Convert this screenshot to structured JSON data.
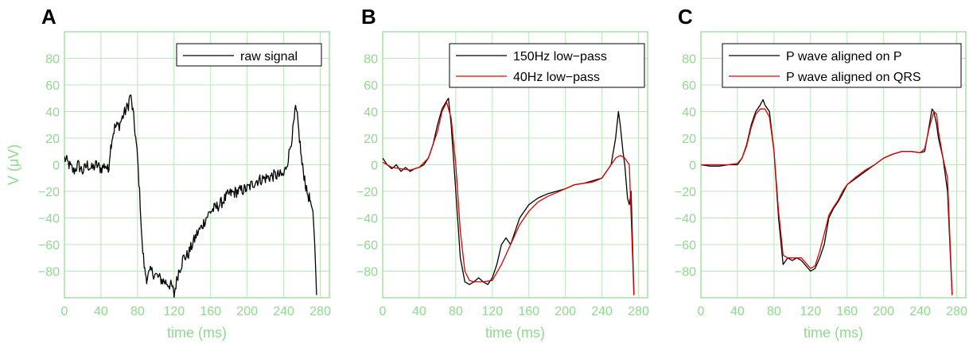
{
  "colors": {
    "grid": "#b8e8b8",
    "frame": "#8fd98f",
    "text_axis": "#8fd98f",
    "black_trace": "#000000",
    "red_trace": "#e00000"
  },
  "chart_data": [
    {
      "type": "line",
      "panel": "A",
      "xlabel": "time (ms)",
      "ylabel": "V (μV)",
      "xlim": [
        0,
        290
      ],
      "ylim": [
        -100,
        100
      ],
      "xticks": [
        0,
        40,
        80,
        120,
        160,
        200,
        240,
        280
      ],
      "yticks": [
        -80,
        -60,
        -40,
        -20,
        0,
        20,
        40,
        60,
        80
      ],
      "xtick_labels": [
        "0",
        "40",
        "80",
        "120",
        "160",
        "200",
        "240",
        "280"
      ],
      "ytick_labels": [
        "−80",
        "−60",
        "−40",
        "−20",
        "0",
        "20",
        "40",
        "60",
        "80"
      ],
      "grid": true,
      "legend_position": "top-right",
      "series": [
        {
          "name": "raw signal",
          "color": "#000000",
          "noisy": true,
          "x": [
            0,
            5,
            10,
            15,
            20,
            25,
            30,
            35,
            40,
            45,
            48,
            50,
            52,
            55,
            60,
            65,
            70,
            72,
            75,
            78,
            80,
            83,
            85,
            88,
            90,
            95,
            100,
            105,
            110,
            115,
            118,
            120,
            122,
            125,
            128,
            130,
            135,
            140,
            145,
            150,
            155,
            160,
            170,
            180,
            190,
            200,
            210,
            220,
            230,
            240,
            245,
            250,
            253,
            255,
            258,
            260,
            263,
            265,
            268,
            270,
            272,
            274,
            276
          ],
          "y": [
            5,
            0,
            -5,
            0,
            -5,
            0,
            -3,
            0,
            -3,
            0,
            -5,
            10,
            20,
            28,
            30,
            38,
            45,
            53,
            40,
            20,
            5,
            -30,
            -60,
            -80,
            -85,
            -80,
            -83,
            -86,
            -88,
            -90,
            -92,
            -98,
            -90,
            -80,
            -75,
            -70,
            -68,
            -60,
            -52,
            -47,
            -40,
            -35,
            -30,
            -22,
            -20,
            -18,
            -12,
            -10,
            -8,
            -8,
            5,
            25,
            42,
            35,
            15,
            0,
            -10,
            -20,
            -25,
            -30,
            -35,
            -60,
            -98
          ]
        }
      ]
    },
    {
      "type": "line",
      "panel": "B",
      "xlabel": "time (ms)",
      "ylabel": "",
      "xlim": [
        0,
        290
      ],
      "ylim": [
        -100,
        100
      ],
      "xticks": [
        0,
        40,
        80,
        120,
        160,
        200,
        240,
        280
      ],
      "yticks": [
        -80,
        -60,
        -40,
        -20,
        0,
        20,
        40,
        60,
        80
      ],
      "xtick_labels": [
        "0",
        "40",
        "80",
        "120",
        "160",
        "200",
        "240",
        "280"
      ],
      "ytick_labels": [
        "−80",
        "−60",
        "−40",
        "−20",
        "0",
        "20",
        "40",
        "60",
        "80"
      ],
      "grid": true,
      "legend_position": "top-right",
      "series": [
        {
          "name": "150Hz low−pass",
          "color": "#000000",
          "x": [
            0,
            5,
            10,
            15,
            20,
            25,
            30,
            35,
            40,
            45,
            50,
            55,
            60,
            65,
            70,
            72,
            75,
            80,
            85,
            90,
            95,
            100,
            105,
            110,
            115,
            120,
            125,
            130,
            135,
            140,
            145,
            150,
            160,
            170,
            180,
            190,
            200,
            210,
            220,
            230,
            240,
            245,
            250,
            255,
            258,
            260,
            263,
            265,
            268,
            270,
            272,
            275
          ],
          "y": [
            5,
            0,
            -3,
            0,
            -5,
            -2,
            -5,
            -3,
            -2,
            0,
            5,
            15,
            30,
            42,
            48,
            50,
            30,
            -20,
            -70,
            -88,
            -90,
            -88,
            -85,
            -88,
            -90,
            -85,
            -75,
            -60,
            -55,
            -60,
            -50,
            -40,
            -30,
            -25,
            -22,
            -20,
            -18,
            -15,
            -14,
            -12,
            -10,
            -5,
            0,
            20,
            40,
            30,
            10,
            0,
            -25,
            -30,
            -20,
            -98
          ]
        },
        {
          "name": "40Hz low−pass",
          "color": "#e00000",
          "x": [
            0,
            10,
            20,
            30,
            40,
            50,
            60,
            65,
            70,
            75,
            80,
            85,
            90,
            95,
            100,
            110,
            120,
            130,
            140,
            150,
            160,
            170,
            180,
            190,
            200,
            210,
            220,
            230,
            240,
            250,
            255,
            260,
            265,
            270,
            275
          ],
          "y": [
            2,
            -2,
            -3,
            -4,
            -2,
            5,
            25,
            40,
            47,
            35,
            0,
            -50,
            -80,
            -87,
            -88,
            -88,
            -87,
            -75,
            -60,
            -45,
            -35,
            -28,
            -24,
            -21,
            -18,
            -15,
            -14,
            -13,
            -10,
            0,
            5,
            7,
            5,
            0,
            -98
          ]
        }
      ]
    },
    {
      "type": "line",
      "panel": "C",
      "xlabel": "time (ms)",
      "ylabel": "",
      "xlim": [
        0,
        290
      ],
      "ylim": [
        -100,
        100
      ],
      "xticks": [
        0,
        40,
        80,
        120,
        160,
        200,
        240,
        280
      ],
      "yticks": [
        -80,
        -60,
        -40,
        -20,
        0,
        20,
        40,
        60,
        80
      ],
      "xtick_labels": [
        "0",
        "40",
        "80",
        "120",
        "160",
        "200",
        "240",
        "280"
      ],
      "ytick_labels": [
        "−80",
        "−60",
        "−40",
        "−20",
        "0",
        "20",
        "40",
        "60",
        "80"
      ],
      "grid": true,
      "legend_position": "top-right",
      "series": [
        {
          "name": "P wave aligned on P",
          "color": "#000000",
          "x": [
            0,
            10,
            20,
            30,
            40,
            45,
            50,
            55,
            60,
            65,
            68,
            70,
            75,
            80,
            85,
            90,
            95,
            100,
            105,
            110,
            115,
            120,
            125,
            130,
            135,
            140,
            145,
            150,
            155,
            160,
            170,
            180,
            190,
            200,
            210,
            220,
            230,
            240,
            245,
            250,
            253,
            255,
            258,
            260,
            265,
            270,
            275
          ],
          "y": [
            0,
            -1,
            -1,
            0,
            0,
            5,
            15,
            30,
            40,
            45,
            49,
            45,
            40,
            10,
            -40,
            -75,
            -70,
            -72,
            -70,
            -72,
            -76,
            -80,
            -78,
            -70,
            -60,
            -40,
            -33,
            -28,
            -22,
            -15,
            -10,
            -5,
            0,
            5,
            8,
            10,
            10,
            9,
            10,
            30,
            42,
            40,
            30,
            20,
            5,
            -20,
            -98
          ]
        },
        {
          "name": "P wave aligned on QRS",
          "color": "#e00000",
          "x": [
            0,
            10,
            20,
            30,
            40,
            45,
            50,
            55,
            60,
            65,
            70,
            75,
            80,
            85,
            90,
            95,
            100,
            110,
            115,
            120,
            125,
            130,
            135,
            140,
            145,
            150,
            155,
            160,
            170,
            180,
            190,
            200,
            210,
            220,
            230,
            240,
            245,
            250,
            255,
            258,
            260,
            265,
            270,
            275
          ],
          "y": [
            0,
            0,
            0,
            0,
            1,
            5,
            14,
            28,
            38,
            42,
            42,
            36,
            10,
            -35,
            -68,
            -70,
            -70,
            -70,
            -74,
            -78,
            -76,
            -65,
            -52,
            -38,
            -32,
            -27,
            -20,
            -15,
            -9,
            -4,
            0,
            5,
            8,
            10,
            10,
            9,
            12,
            28,
            40,
            38,
            25,
            5,
            -10,
            -98
          ]
        }
      ]
    }
  ]
}
